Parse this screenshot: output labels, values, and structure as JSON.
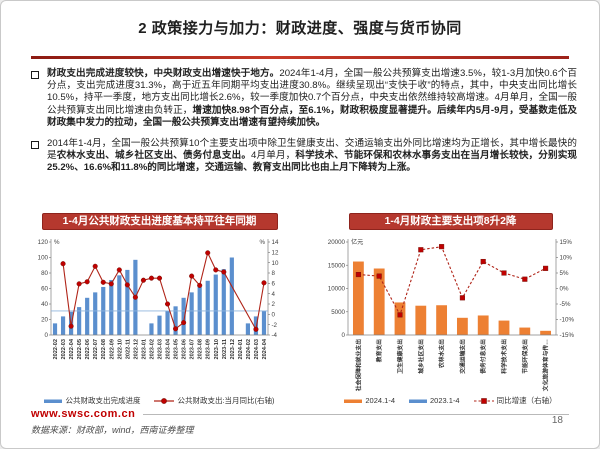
{
  "header": {
    "title": "2 政策接力与加力：财政进度、强度与货币协同"
  },
  "paragraphs": [
    {
      "segments": [
        {
          "text": "财政支出完成进度较快，中央财政支出增速快于地方。",
          "bold": true
        },
        {
          "text": "2024年1-4月，全国一般公共预算支出增速3.5%，较1-3月加快0.6个百分点，支出完成进度31.3%，高于近五年同期平均支出进度30.8%。继续呈现出“支快于收”的特点，其中，中央支出同比增长10.5%，持平一季度，地方支出同比增长2.6%，较一季度加快0.7个百分点，中央支出依然维持较高增速。4月单月，全国一般公共预算支出同比增速由负转正，",
          "bold": false
        },
        {
          "text": "增速加快8.98个百分点，至6.1%，财政积极度显著提升。后续年内5月-9月，受基数走低及财政集中发力的拉动，全国一般公共预算支出增速有望持续加快。",
          "bold": true
        }
      ]
    },
    {
      "segments": [
        {
          "text": "2014年1-4月，全国一般公共预算10个主要支出项中除卫生健康支出、交通运输支出外同比增速均为正增长，其中增长最快的是",
          "bold": false
        },
        {
          "text": "农林水支出、城乡社区支出、债务付息支出。",
          "bold": true
        },
        {
          "text": "4月单月，",
          "bold": false
        },
        {
          "text": "科学技术、节能环保和农林水事务支出在当月增长较快，分别实现25.2%、16.6%和11.8%的同比增速，交通运输、教育支出同比也由上月下降转为上涨。",
          "bold": true
        }
      ]
    }
  ],
  "chart_data": [
    {
      "type": "bar+line",
      "banner": "1-4月公共财政支出进度基本持平往年同期",
      "categories": [
        "2022-02",
        "2022-03",
        "2022-04",
        "2022-05",
        "2022-06",
        "2022-07",
        "2022-08",
        "2022-09",
        "2022-10",
        "2022-11",
        "2022-12",
        "2023-01",
        "2023-02",
        "2023-03",
        "2023-04",
        "2023-05",
        "2023-06",
        "2023-07",
        "2023-08",
        "2023-09",
        "2023-10",
        "2023-11",
        "2023-12",
        "2024-01",
        "2024-02",
        "2024-03",
        "2024-04"
      ],
      "bars": {
        "name": "公共财政支出完成进度",
        "color": "#5b8fce",
        "values": [
          15,
          24,
          30,
          36,
          48,
          55,
          62,
          71,
          77,
          84,
          97,
          null,
          15,
          25,
          31,
          37,
          48,
          55,
          62,
          70,
          78,
          85,
          100,
          null,
          15,
          24,
          31
        ]
      },
      "line": {
        "name": "公共财政支出:当月同比(右轴)",
        "color": "#b02418",
        "marker_color": "#c00000",
        "marker": "circle",
        "dashed": false,
        "values": [
          null,
          9.8,
          -2.3,
          5.9,
          6.3,
          9.3,
          6.2,
          5.9,
          8.6,
          5.7,
          3.3,
          6.6,
          7.0,
          7.0,
          2.0,
          -2.8,
          -1.6,
          7.4,
          5.6,
          11.9,
          8.6,
          8.2,
          null,
          null,
          null,
          -2.9,
          6.1
        ]
      },
      "left_axis": {
        "min": 0,
        "max": 120,
        "ticks": [
          0,
          20,
          40,
          60,
          80,
          100,
          120
        ],
        "unit": "%"
      },
      "right_axis": {
        "min": -4,
        "max": 14,
        "ticks": [
          -4,
          -2,
          0,
          2,
          4,
          6,
          8,
          10,
          12,
          14
        ],
        "unit": "%",
        "suffix": ""
      },
      "ref_line": {
        "axis": "left",
        "value": 31
      },
      "layout": {
        "pl": 24,
        "pr": 24
      },
      "cat_font": 5.6,
      "legend_position": "bottom",
      "grid": false
    },
    {
      "type": "bar+line",
      "banner": "1-4月财政主要支出项8升2降",
      "categories": [
        "社会保障和就业支出",
        "教育支出",
        "卫生健康支出",
        "城乡社区支出",
        "农林水支出",
        "交通运输支出",
        "债务付息支出",
        "科学技术支出",
        "节能环保支出",
        "文化旅游体育与传…"
      ],
      "bars": {
        "name": "2024.1-4",
        "color": "#ed8033",
        "values": [
          15800,
          14300,
          7000,
          6300,
          6400,
          3700,
          4200,
          3100,
          1600,
          900
        ]
      },
      "bars2": {
        "name": "2023.1-4",
        "color": "#5b8fce"
      },
      "line": {
        "name": "同比增速（右轴）",
        "color": "#b02418",
        "marker_color": "#c00000",
        "marker": "square",
        "dashed": true,
        "values": [
          4.5,
          4.0,
          -8.5,
          12.5,
          13.5,
          -3.0,
          8.7,
          5.0,
          3.0,
          6.5
        ]
      },
      "left_axis": {
        "min": 0,
        "max": 20000,
        "ticks": [
          0,
          5000,
          10000,
          15000,
          20000
        ],
        "unit": "亿元"
      },
      "right_axis": {
        "min": -15,
        "max": 15,
        "ticks": [
          -15,
          -10,
          -5,
          0,
          5,
          10,
          15
        ],
        "suffix": "%"
      },
      "layout": {
        "pl": 30,
        "pr": 27
      },
      "cat_font": 5.8,
      "legend_position": "bottom",
      "grid": false
    }
  ],
  "footer": {
    "url": "www.swsc.com.cn",
    "source": "数据来源：财政部，wind，西南证券整理",
    "page": "18"
  },
  "colors": {
    "banner_red": "#b5382e",
    "accent_red": "#c00000",
    "bar_blue": "#5b8fce",
    "bar_orange": "#ed8033",
    "line_red": "#b02418"
  }
}
